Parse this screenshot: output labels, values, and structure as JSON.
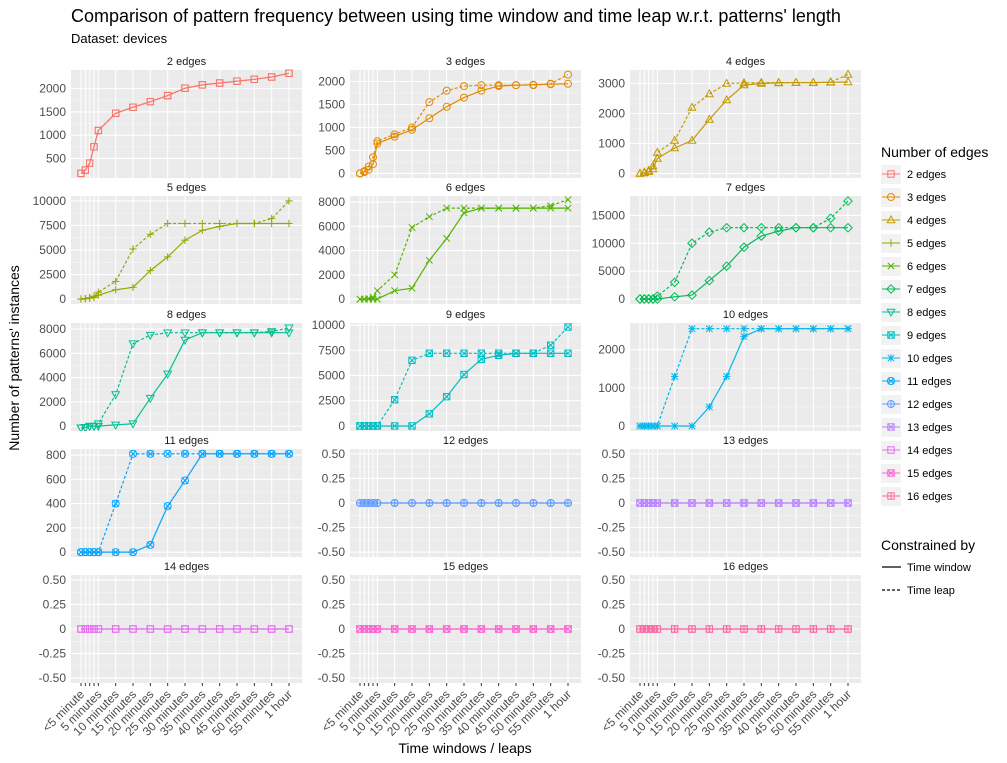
{
  "chart_data": {
    "type": "line",
    "title": "Comparison of pattern frequency between using time window and time leap w.r.t. patterns' length",
    "subtitle": "Dataset: devices",
    "xlabel": "Time windows / leaps",
    "ylabel": "Number of patterns' instances",
    "facet_by": "Number of edges",
    "grid": true,
    "legend_placement": "right",
    "legend_colour_title": "Number of edges",
    "legend_linetype_title": "Constrained by",
    "linetypes": [
      {
        "name": "Time window",
        "dash": "solid"
      },
      {
        "name": "Time leap",
        "dash": "dotted"
      }
    ],
    "x_tick_labels": [
      "<5 minute",
      "5 minutes",
      "10 minutes",
      "15 minutes",
      "20 minutes",
      "25 minutes",
      "30 minutes",
      "35 minutes",
      "40 minutes",
      "45 minutes",
      "50 minutes",
      "55 minutes",
      "1 hour"
    ],
    "x_early": [
      0,
      0.25,
      0.5,
      0.75
    ],
    "x": [
      1,
      2,
      3,
      4,
      5,
      6,
      7,
      8,
      9,
      10,
      11,
      12
    ],
    "facets": [
      {
        "label": "2 edges",
        "color": "#F8766D",
        "shape": "square",
        "ylim": [
          80,
          2400
        ],
        "yticks": [
          500,
          1000,
          1500,
          2000
        ],
        "window_early": [
          180,
          250,
          400,
          750
        ],
        "leap_early": [
          180,
          250,
          400,
          750
        ],
        "window": [
          1100,
          1470,
          1600,
          1720,
          1850,
          2010,
          2080,
          2120,
          2160,
          2200,
          2250,
          2330
        ],
        "leap": [
          1100,
          1470,
          1600,
          1720,
          1850,
          2010,
          2080,
          2120,
          2160,
          2200,
          2250,
          2330
        ]
      },
      {
        "label": "3 edges",
        "color": "#E38900",
        "shape": "circle",
        "ylim": [
          -100,
          2250
        ],
        "yticks": [
          0,
          500,
          1000,
          1500,
          2000
        ],
        "window_early": [
          0,
          30,
          80,
          200
        ],
        "leap_early": [
          0,
          50,
          150,
          350
        ],
        "window": [
          650,
          800,
          950,
          1200,
          1450,
          1650,
          1800,
          1900,
          1920,
          1930,
          1940,
          1950
        ],
        "leap": [
          700,
          850,
          1000,
          1550,
          1800,
          1900,
          1920,
          1920,
          1920,
          1920,
          1950,
          2150
        ]
      },
      {
        "label": "4 edges",
        "color": "#C49A00",
        "shape": "triangle",
        "ylim": [
          -150,
          3450
        ],
        "yticks": [
          0,
          1000,
          2000,
          3000
        ],
        "window_early": [
          0,
          20,
          60,
          150
        ],
        "leap_early": [
          0,
          40,
          100,
          250
        ],
        "window": [
          500,
          850,
          1100,
          1800,
          2450,
          2950,
          3000,
          3020,
          3030,
          3030,
          3040,
          3050
        ],
        "leap": [
          700,
          1100,
          2200,
          2650,
          3000,
          3020,
          3030,
          3030,
          3030,
          3030,
          3050,
          3300
        ]
      },
      {
        "label": "5 edges",
        "color": "#99A800",
        "shape": "plus",
        "ylim": [
          -500,
          10500
        ],
        "yticks": [
          0,
          2500,
          5000,
          7500,
          10000
        ],
        "window_early": [
          0,
          30,
          80,
          150
        ],
        "leap_early": [
          0,
          60,
          150,
          300
        ],
        "window": [
          400,
          950,
          1200,
          2900,
          4300,
          6000,
          7000,
          7400,
          7700,
          7700,
          7700,
          7700
        ],
        "leap": [
          700,
          1800,
          5100,
          6600,
          7700,
          7700,
          7700,
          7700,
          7700,
          7700,
          8200,
          10000
        ]
      },
      {
        "label": "6 edges",
        "color": "#53B400",
        "shape": "cross",
        "ylim": [
          -400,
          8500
        ],
        "yticks": [
          0,
          2000,
          4000,
          6000,
          8000
        ],
        "window_early": [
          0,
          0,
          0,
          0
        ],
        "leap_early": [
          0,
          0,
          50,
          150
        ],
        "window": [
          0,
          700,
          900,
          3200,
          5000,
          7100,
          7500,
          7500,
          7500,
          7500,
          7500,
          7500
        ],
        "leap": [
          700,
          2000,
          5900,
          6800,
          7500,
          7500,
          7500,
          7500,
          7500,
          7500,
          7700,
          8200
        ]
      },
      {
        "label": "7 edges",
        "color": "#00BC56",
        "shape": "diamond",
        "ylim": [
          -900,
          18500
        ],
        "yticks": [
          0,
          5000,
          10000,
          15000
        ],
        "window_early": [
          0,
          0,
          0,
          0
        ],
        "leap_early": [
          0,
          0,
          0,
          0
        ],
        "window": [
          0,
          400,
          700,
          3300,
          5900,
          9300,
          11300,
          12200,
          12800,
          12800,
          12800,
          12800
        ],
        "leap": [
          500,
          3000,
          10000,
          12000,
          12800,
          12800,
          12800,
          12800,
          12800,
          12800,
          14500,
          17600
        ]
      },
      {
        "label": "8 edges",
        "color": "#00C094",
        "shape": "triangle-down",
        "ylim": [
          -400,
          8500
        ],
        "yticks": [
          0,
          2000,
          4000,
          6000,
          8000
        ],
        "window_early": [
          -150,
          -100,
          0,
          0
        ],
        "leap_early": [
          -150,
          -100,
          0,
          0
        ],
        "window": [
          0,
          100,
          200,
          2300,
          4300,
          7100,
          7700,
          7700,
          7700,
          7700,
          7700,
          7700
        ],
        "leap": [
          200,
          2600,
          6800,
          7500,
          7700,
          7700,
          7700,
          7700,
          7700,
          7700,
          7800,
          8100
        ]
      },
      {
        "label": "9 edges",
        "color": "#00BFC4",
        "shape": "square-cross",
        "ylim": [
          -500,
          10200
        ],
        "yticks": [
          0,
          2500,
          5000,
          7500,
          10000
        ],
        "window_early": [
          0,
          0,
          0,
          0
        ],
        "leap_early": [
          0,
          0,
          0,
          0
        ],
        "window": [
          0,
          0,
          0,
          1200,
          2900,
          5100,
          6600,
          7000,
          7200,
          7200,
          7200,
          7200
        ],
        "leap": [
          0,
          2600,
          6500,
          7200,
          7200,
          7200,
          7200,
          7200,
          7200,
          7200,
          8000,
          9800
        ]
      },
      {
        "label": "10 edges",
        "color": "#00B6EB",
        "shape": "asterisk",
        "ylim": [
          -130,
          2700
        ],
        "yticks": [
          0,
          1000,
          2000
        ],
        "window_early": [
          0,
          0,
          0,
          0
        ],
        "leap_early": [
          0,
          0,
          0,
          0
        ],
        "window": [
          0,
          0,
          0,
          500,
          1300,
          2350,
          2550,
          2550,
          2550,
          2550,
          2550,
          2550
        ],
        "leap": [
          0,
          1300,
          2550,
          2550,
          2550,
          2550,
          2550,
          2550,
          2550,
          2550,
          2550,
          2550
        ]
      },
      {
        "label": "11 edges",
        "color": "#06A4FF",
        "shape": "circle-cross",
        "ylim": [
          -40,
          850
        ],
        "yticks": [
          0,
          200,
          400,
          600,
          800
        ],
        "window_early": [
          0,
          0,
          0,
          0
        ],
        "leap_early": [
          0,
          0,
          0,
          0
        ],
        "window": [
          0,
          0,
          0,
          60,
          380,
          590,
          810,
          810,
          810,
          810,
          810,
          810
        ],
        "leap": [
          0,
          400,
          810,
          810,
          810,
          810,
          810,
          810,
          810,
          810,
          810,
          810
        ]
      },
      {
        "label": "12 edges",
        "color": "#619CFF",
        "shape": "circle-plus",
        "ylim": [
          -0.55,
          0.55
        ],
        "yticks": [
          -0.5,
          -0.25,
          0,
          0.25,
          0.5
        ],
        "window_early": [
          0,
          0,
          0,
          0
        ],
        "leap_early": [
          0,
          0,
          0,
          0
        ],
        "window": [
          0,
          0,
          0,
          0,
          0,
          0,
          0,
          0,
          0,
          0,
          0,
          0
        ],
        "leap": [
          0,
          0,
          0,
          0,
          0,
          0,
          0,
          0,
          0,
          0,
          0,
          0
        ]
      },
      {
        "label": "13 edges",
        "color": "#B983FF",
        "shape": "square-x",
        "ylim": [
          -0.55,
          0.55
        ],
        "yticks": [
          -0.5,
          -0.25,
          0,
          0.25,
          0.5
        ],
        "window_early": [
          0,
          0,
          0,
          0
        ],
        "leap_early": [
          0,
          0,
          0,
          0
        ],
        "window": [
          0,
          0,
          0,
          0,
          0,
          0,
          0,
          0,
          0,
          0,
          0,
          0
        ],
        "leap": [
          0,
          0,
          0,
          0,
          0,
          0,
          0,
          0,
          0,
          0,
          0,
          0
        ]
      },
      {
        "label": "14 edges",
        "color": "#E76BF3",
        "shape": "square",
        "ylim": [
          -0.55,
          0.55
        ],
        "yticks": [
          -0.5,
          -0.25,
          0,
          0.25,
          0.5
        ],
        "window_early": [
          0,
          0,
          0,
          0
        ],
        "leap_early": [
          0,
          0,
          0,
          0
        ],
        "window": [
          0,
          0,
          0,
          0,
          0,
          0,
          0,
          0,
          0,
          0,
          0,
          0
        ],
        "leap": [
          0,
          0,
          0,
          0,
          0,
          0,
          0,
          0,
          0,
          0,
          0,
          0
        ]
      },
      {
        "label": "15 edges",
        "color": "#FD61D1",
        "shape": "square-x",
        "ylim": [
          -0.55,
          0.55
        ],
        "yticks": [
          -0.5,
          -0.25,
          0,
          0.25,
          0.5
        ],
        "window_early": [
          0,
          0,
          0,
          0
        ],
        "leap_early": [
          0,
          0,
          0,
          0
        ],
        "window": [
          0,
          0,
          0,
          0,
          0,
          0,
          0,
          0,
          0,
          0,
          0,
          0
        ],
        "leap": [
          0,
          0,
          0,
          0,
          0,
          0,
          0,
          0,
          0,
          0,
          0,
          0
        ]
      },
      {
        "label": "16 edges",
        "color": "#FF67A4",
        "shape": "square-plus",
        "ylim": [
          -0.55,
          0.55
        ],
        "yticks": [
          -0.5,
          -0.25,
          0,
          0.25,
          0.5
        ],
        "window_early": [
          0,
          0,
          0,
          0
        ],
        "leap_early": [
          0,
          0,
          0,
          0
        ],
        "window": [
          0,
          0,
          0,
          0,
          0,
          0,
          0,
          0,
          0,
          0,
          0,
          0
        ],
        "leap": [
          0,
          0,
          0,
          0,
          0,
          0,
          0,
          0,
          0,
          0,
          0,
          0
        ]
      }
    ]
  }
}
